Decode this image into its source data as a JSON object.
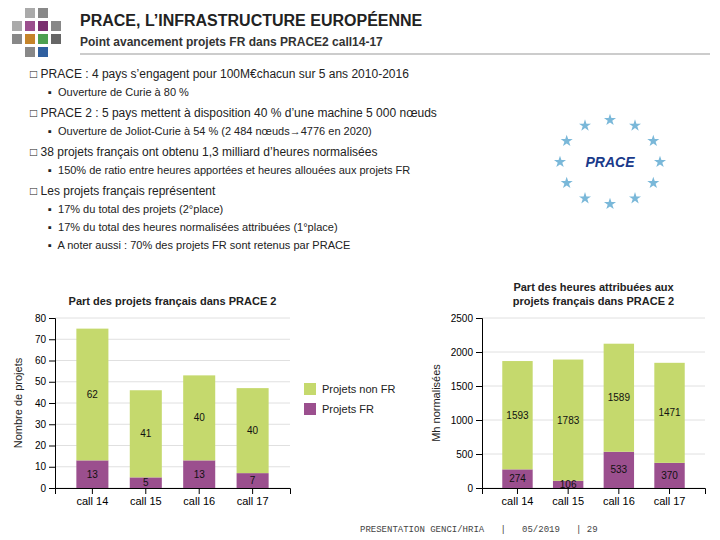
{
  "title": "PRACE, L’INFRASTRUCTURE EUROPÉENNE",
  "subtitle": "Point avancement projets FR dans PRACE2 call14-17",
  "annotations": [
    "□ PRACE : 4 pays s’engagent pour 100M€chacun sur 5 ans 2010-2016",
    "▪  Ouverture de Curie à 80 %",
    "□ PRACE 2 : 5 pays mettent à disposition 40 % d’une machine 5 000 nœuds",
    "▪  Ouverture de Joliot-Curie à 54 % (2 484 nœuds→4776 en 2020)",
    "□ 38 projets français ont obtenu 1,3 milliard d’heures normalisées",
    "▪  150% de ratio entre heures apportées et heures allouées aux projets FR",
    "□ Les projets français représentent",
    "▪  17% du total des projets (2°place)",
    "▪  17% du total des heures normalisées attribuées (1°place)",
    "▪  A noter aussi : 70% des projets FR sont retenus par PRACE"
  ],
  "logo": "PRACE",
  "footer": "PRESENTATION GENCI/HRIA   |   05/2019   | 29",
  "chart_data": [
    {
      "type": "bar",
      "stacked": true,
      "data_labels": true,
      "grid": true,
      "legend": "right",
      "title": "Part des projets français dans PRACE 2",
      "ylabel": "Nombre de projets",
      "categories": [
        "call 14",
        "call 15",
        "call 16",
        "call 17"
      ],
      "series": [
        {
          "name": "Projets FR",
          "color": "#9b4f8e",
          "values": [
            13,
            5,
            13,
            7
          ]
        },
        {
          "name": "Projets non FR",
          "color": "#c5d96d",
          "values": [
            62,
            41,
            40,
            40
          ]
        }
      ],
      "ylim": [
        0,
        80
      ],
      "yticks": [
        0,
        10,
        20,
        30,
        40,
        50,
        60,
        70,
        80
      ]
    },
    {
      "type": "bar",
      "stacked": true,
      "data_labels": true,
      "grid": true,
      "title": "Part des heures attribuées aux\nprojets français dans PRACE 2",
      "ylabel": "Mh normalisées",
      "categories": [
        "call 14",
        "call 15",
        "call 16",
        "call 17"
      ],
      "series": [
        {
          "color": "#9b4f8e",
          "values": [
            274,
            106,
            533,
            370
          ]
        },
        {
          "color": "#c5d96d",
          "values": [
            1593,
            1783,
            1589,
            1471
          ]
        }
      ],
      "ylim": [
        0,
        2500
      ],
      "yticks": [
        0,
        500,
        1000,
        1500,
        2000,
        2500
      ]
    }
  ]
}
